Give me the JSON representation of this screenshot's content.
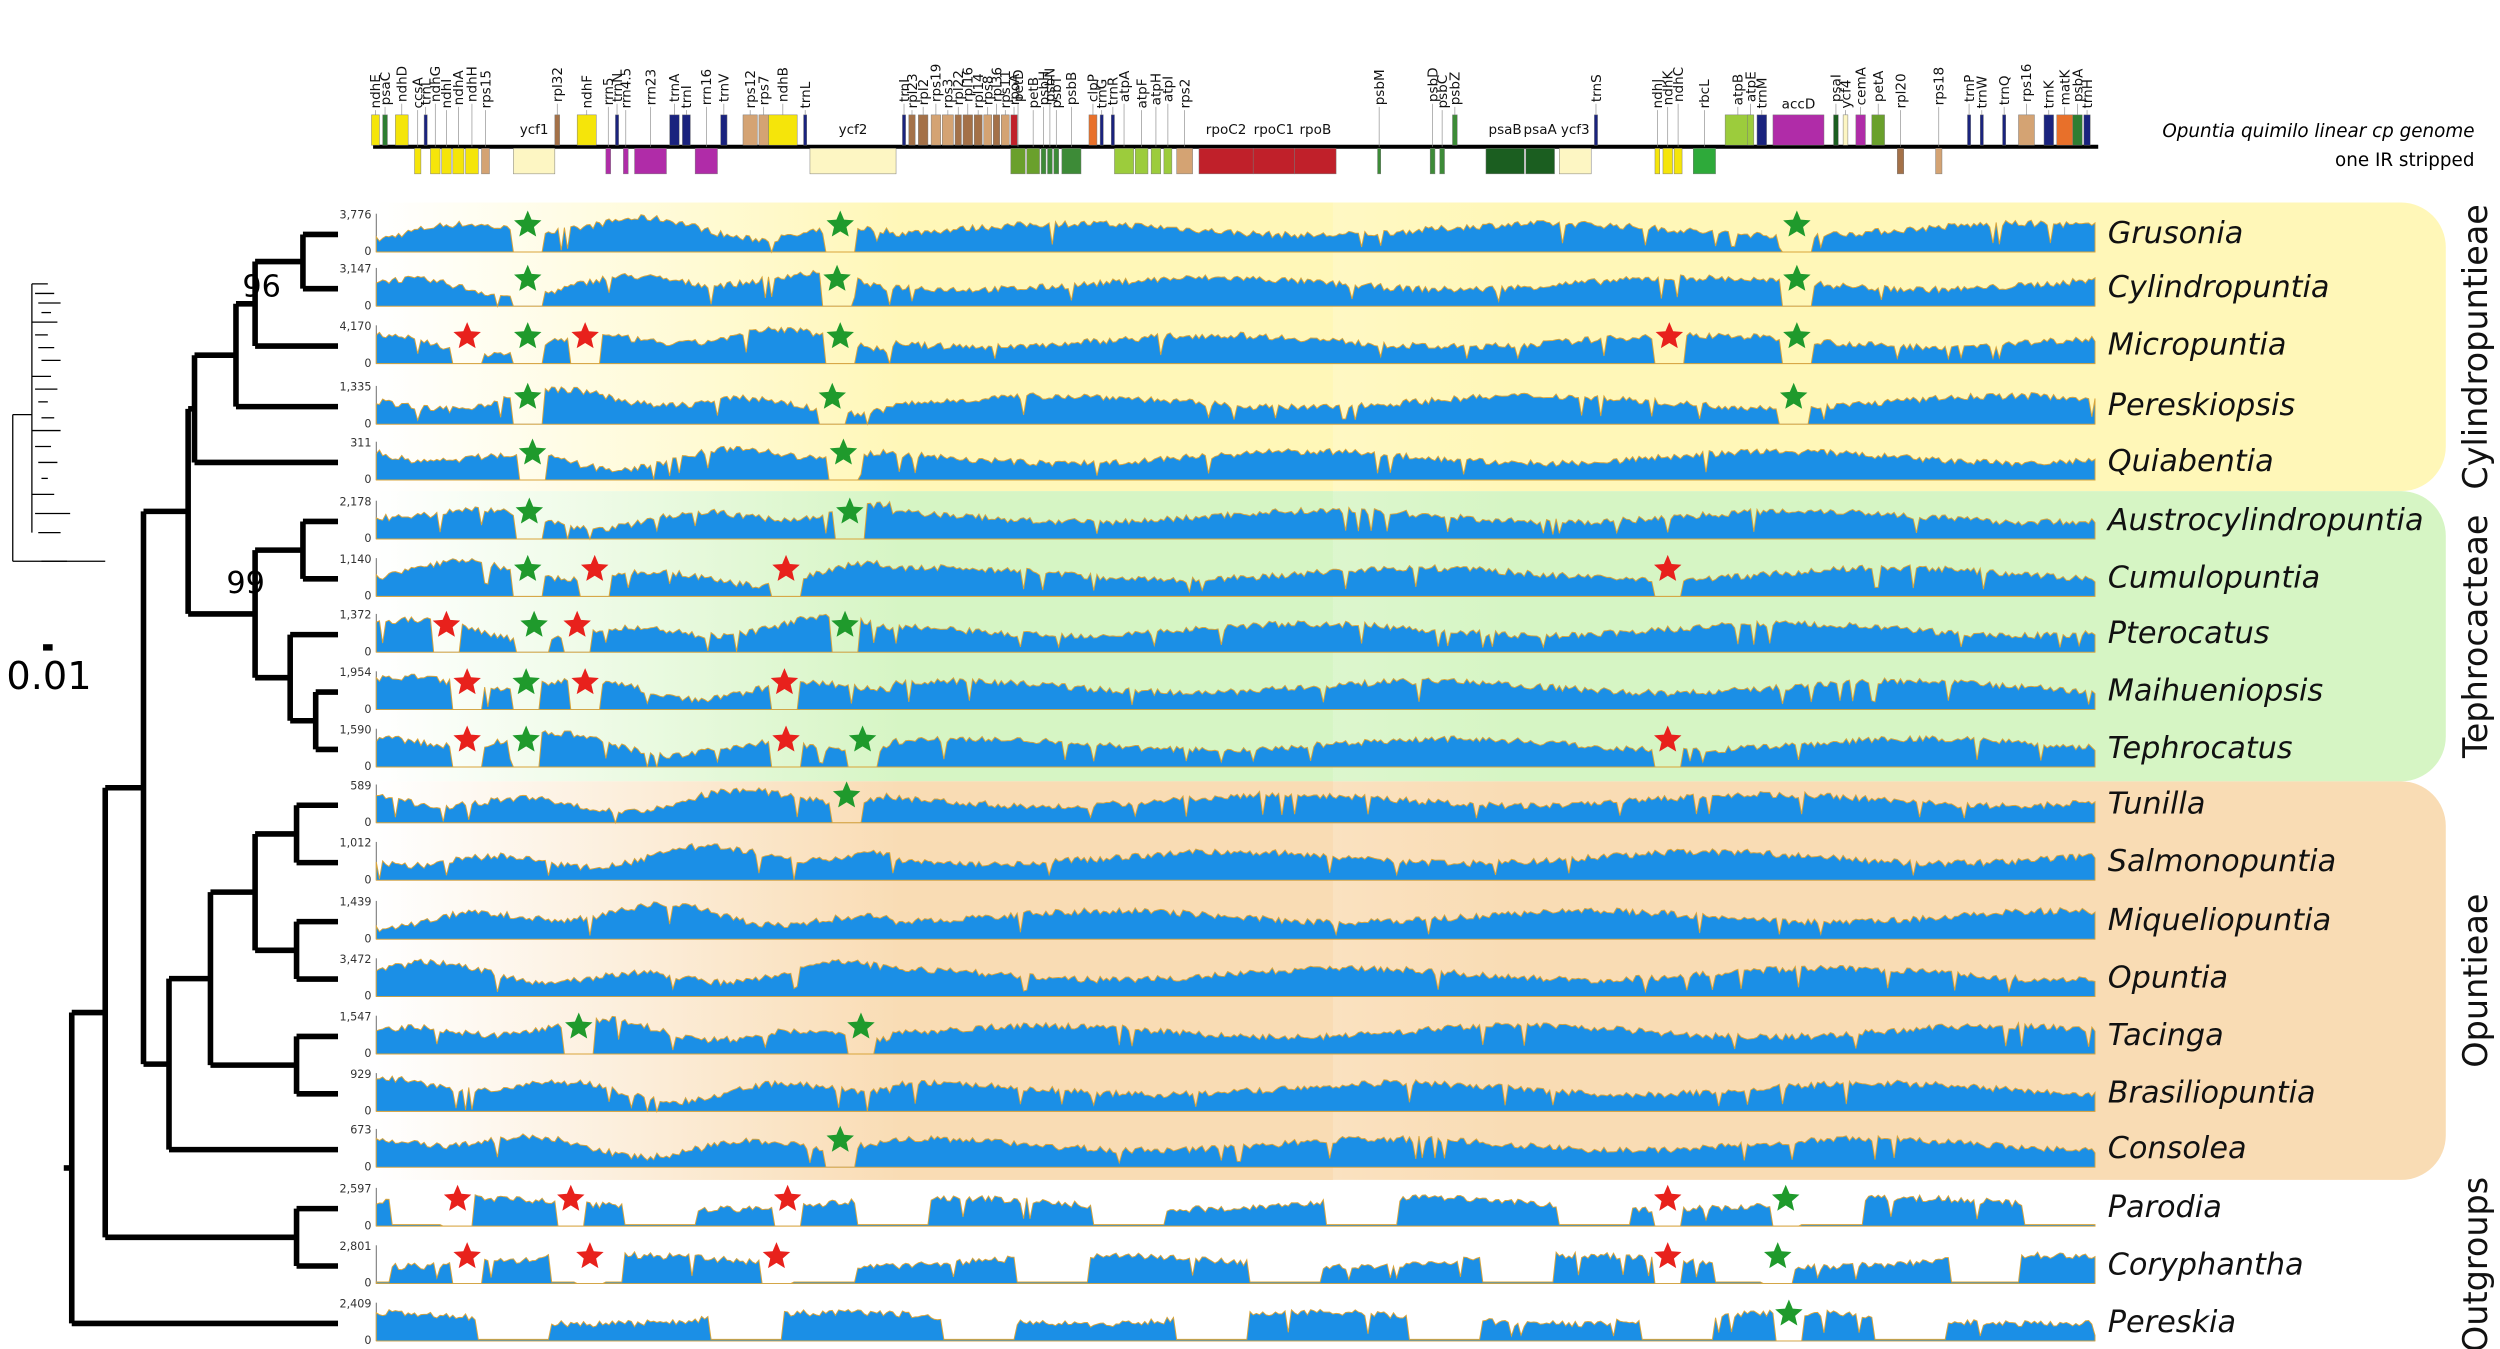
{
  "gene_map": {
    "title": "Opuntia quimilo linear cp genome",
    "subtitle": "one IR stripped",
    "genes": [
      {
        "name": "ndhE",
        "color": "#f5e50a"
      },
      {
        "name": "psaC",
        "color": "#2e7d32"
      },
      {
        "name": "ndhD",
        "color": "#f5e50a"
      },
      {
        "name": "ccsA",
        "color": "#f5e50a"
      },
      {
        "name": "trnL",
        "color": "#1a237e"
      },
      {
        "name": "ndhG",
        "color": "#f5e50a"
      },
      {
        "name": "ndhI",
        "color": "#f5e50a"
      },
      {
        "name": "ndhA",
        "color": "#f5e50a"
      },
      {
        "name": "ndhH",
        "color": "#f5e50a"
      },
      {
        "name": "rps15",
        "color": "#d4a373"
      },
      {
        "name": "ycf1",
        "color": "#fdf6c3"
      },
      {
        "name": "rpl32",
        "color": "#a47148"
      },
      {
        "name": "ndhF",
        "color": "#f5e50a"
      },
      {
        "name": "rrn5",
        "color": "#b02ca8"
      },
      {
        "name": "trnN",
        "color": "#1a237e"
      },
      {
        "name": "rrn4.5",
        "color": "#b02ca8"
      },
      {
        "name": "rrn23",
        "color": "#b02ca8"
      },
      {
        "name": "trnA",
        "color": "#1a237e"
      },
      {
        "name": "trnI",
        "color": "#1a237e"
      },
      {
        "name": "rrn16",
        "color": "#b02ca8"
      },
      {
        "name": "trnV",
        "color": "#1a237e"
      },
      {
        "name": "rps12",
        "color": "#d4a373"
      },
      {
        "name": "rps7",
        "color": "#d4a373"
      },
      {
        "name": "ndhB",
        "color": "#f5e50a"
      },
      {
        "name": "trnL",
        "color": "#1a237e"
      },
      {
        "name": "ycf2",
        "color": "#fdf6c3"
      },
      {
        "name": "trnI",
        "color": "#1a237e"
      },
      {
        "name": "rpl23",
        "color": "#a47148"
      },
      {
        "name": "rpl2",
        "color": "#a47148"
      },
      {
        "name": "rps19",
        "color": "#d4a373"
      },
      {
        "name": "rps3",
        "color": "#d4a373"
      },
      {
        "name": "rpl22",
        "color": "#a47148"
      },
      {
        "name": "rpl16",
        "color": "#a47148"
      },
      {
        "name": "rpl14",
        "color": "#a47148"
      },
      {
        "name": "rps8",
        "color": "#d4a373"
      },
      {
        "name": "rpl36",
        "color": "#a47148"
      },
      {
        "name": "rps11",
        "color": "#d4a373"
      },
      {
        "name": "rpoA",
        "color": "#c0202a"
      },
      {
        "name": "petD",
        "color": "#6aa02c"
      },
      {
        "name": "petB",
        "color": "#6aa02c"
      },
      {
        "name": "psbH",
        "color": "#3d8b37"
      },
      {
        "name": "psbN",
        "color": "#3d8b37"
      },
      {
        "name": "psbT",
        "color": "#3d8b37"
      },
      {
        "name": "psbB",
        "color": "#3d8b37"
      },
      {
        "name": "clpP",
        "color": "#e8702a"
      },
      {
        "name": "trnG",
        "color": "#1a237e"
      },
      {
        "name": "trnR",
        "color": "#1a237e"
      },
      {
        "name": "atpA",
        "color": "#9ccc3c"
      },
      {
        "name": "atpF",
        "color": "#9ccc3c"
      },
      {
        "name": "atpH",
        "color": "#9ccc3c"
      },
      {
        "name": "atpI",
        "color": "#9ccc3c"
      },
      {
        "name": "rps2",
        "color": "#d4a373"
      },
      {
        "name": "rpoC2",
        "color": "#c0202a"
      },
      {
        "name": "rpoC1",
        "color": "#c0202a"
      },
      {
        "name": "rpoB",
        "color": "#c0202a"
      },
      {
        "name": "psbM",
        "color": "#3d8b37"
      },
      {
        "name": "psbD",
        "color": "#3d8b37"
      },
      {
        "name": "psbC",
        "color": "#3d8b37"
      },
      {
        "name": "psbZ",
        "color": "#3d8b37"
      },
      {
        "name": "psaB",
        "color": "#1b5e20"
      },
      {
        "name": "psaA",
        "color": "#1b5e20"
      },
      {
        "name": "ycf3",
        "color": "#fdf6c3"
      },
      {
        "name": "trnS",
        "color": "#1a237e"
      },
      {
        "name": "ndhJ",
        "color": "#f5e50a"
      },
      {
        "name": "ndhK",
        "color": "#f5e50a"
      },
      {
        "name": "ndhC",
        "color": "#f5e50a"
      },
      {
        "name": "rbcL",
        "color": "#2eaa3a"
      },
      {
        "name": "atpB",
        "color": "#9ccc3c"
      },
      {
        "name": "atpE",
        "color": "#9ccc3c"
      },
      {
        "name": "trnM",
        "color": "#1a237e"
      },
      {
        "name": "accD",
        "color": "#b02ca8"
      },
      {
        "name": "psaI",
        "color": "#1b5e20"
      },
      {
        "name": "ycf4",
        "color": "#fdf6c3"
      },
      {
        "name": "cemA",
        "color": "#b02ca8"
      },
      {
        "name": "petA",
        "color": "#6aa02c"
      },
      {
        "name": "rpl20",
        "color": "#a47148"
      },
      {
        "name": "rps18",
        "color": "#d4a373"
      },
      {
        "name": "trnP",
        "color": "#1a237e"
      },
      {
        "name": "trnW",
        "color": "#1a237e"
      },
      {
        "name": "trnQ",
        "color": "#1a237e"
      },
      {
        "name": "rps16",
        "color": "#d4a373"
      },
      {
        "name": "trnK",
        "color": "#1a237e"
      },
      {
        "name": "matK",
        "color": "#e8702a"
      },
      {
        "name": "psbA",
        "color": "#2e7d32"
      },
      {
        "name": "trnH",
        "color": "#1a237e"
      }
    ]
  },
  "rows": [
    {
      "name": "Grusonia",
      "max": {
        "value": 3776,
        "label": "3,776"
      },
      "min": 0
    },
    {
      "name": "Cylindropuntia",
      "max": {
        "value": 3147,
        "label": "3,147"
      },
      "min": 0
    },
    {
      "name": "Micropuntia",
      "max": {
        "value": 4170,
        "label": "4,170"
      },
      "min": 0
    },
    {
      "name": "Pereskiopsis",
      "max": {
        "value": 1335,
        "label": "1,335"
      },
      "min": 0
    },
    {
      "name": "Quiabentia",
      "max": 311,
      "min": 0
    },
    {
      "name": "Austrocylindropuntia",
      "max": {
        "value": 2178,
        "label": "2,178"
      },
      "min": 0
    },
    {
      "name": "Cumulopuntia",
      "max": {
        "value": 1140,
        "label": "1,140"
      },
      "min": 0
    },
    {
      "name": "Pterocatus",
      "max": {
        "value": 1372,
        "label": "1,372"
      },
      "min": 0
    },
    {
      "name": "Maihueniopsis",
      "max": {
        "value": 1954,
        "label": "1,954"
      },
      "min": 0
    },
    {
      "name": "Tephrocatus",
      "max": {
        "value": 1590,
        "label": "1,590"
      },
      "min": 0
    },
    {
      "name": "Tunilla",
      "max": 589,
      "min": 0
    },
    {
      "name": "Salmonopuntia",
      "max": {
        "value": 1012,
        "label": "1,012"
      },
      "min": 0
    },
    {
      "name": "Miqueliopuntia",
      "max": {
        "value": 1439,
        "label": "1,439"
      },
      "min": 0
    },
    {
      "name": "Opuntia",
      "max": {
        "value": 3472,
        "label": "3,472"
      },
      "min": 0
    },
    {
      "name": "Tacinga",
      "max": {
        "value": 1547,
        "label": "1,547"
      },
      "min": 0
    },
    {
      "name": "Brasiliopuntia",
      "max": 929,
      "min": 0
    },
    {
      "name": "Consolea",
      "max": 673,
      "min": 0
    },
    {
      "name": "Parodia",
      "max": {
        "value": 2597,
        "label": "2,597"
      },
      "min": 0
    },
    {
      "name": "Coryphantha",
      "max": {
        "value": 2801,
        "label": "2,801"
      },
      "min": 0
    },
    {
      "name": "Pereskia",
      "max": {
        "value": 2409,
        "label": "2,409"
      },
      "min": 0
    }
  ],
  "groups": [
    {
      "name": "Cylindropuntieae",
      "color": "#fff7b8"
    },
    {
      "name": "Tephrocacteae",
      "color": "#d6f5c4"
    },
    {
      "name": "Opuntieae",
      "color": "#f9dcb4"
    },
    {
      "name": "Outgroups"
    }
  ],
  "tree": {
    "bootstrap": [
      96,
      99
    ],
    "scale_bar": "0.01"
  }
}
